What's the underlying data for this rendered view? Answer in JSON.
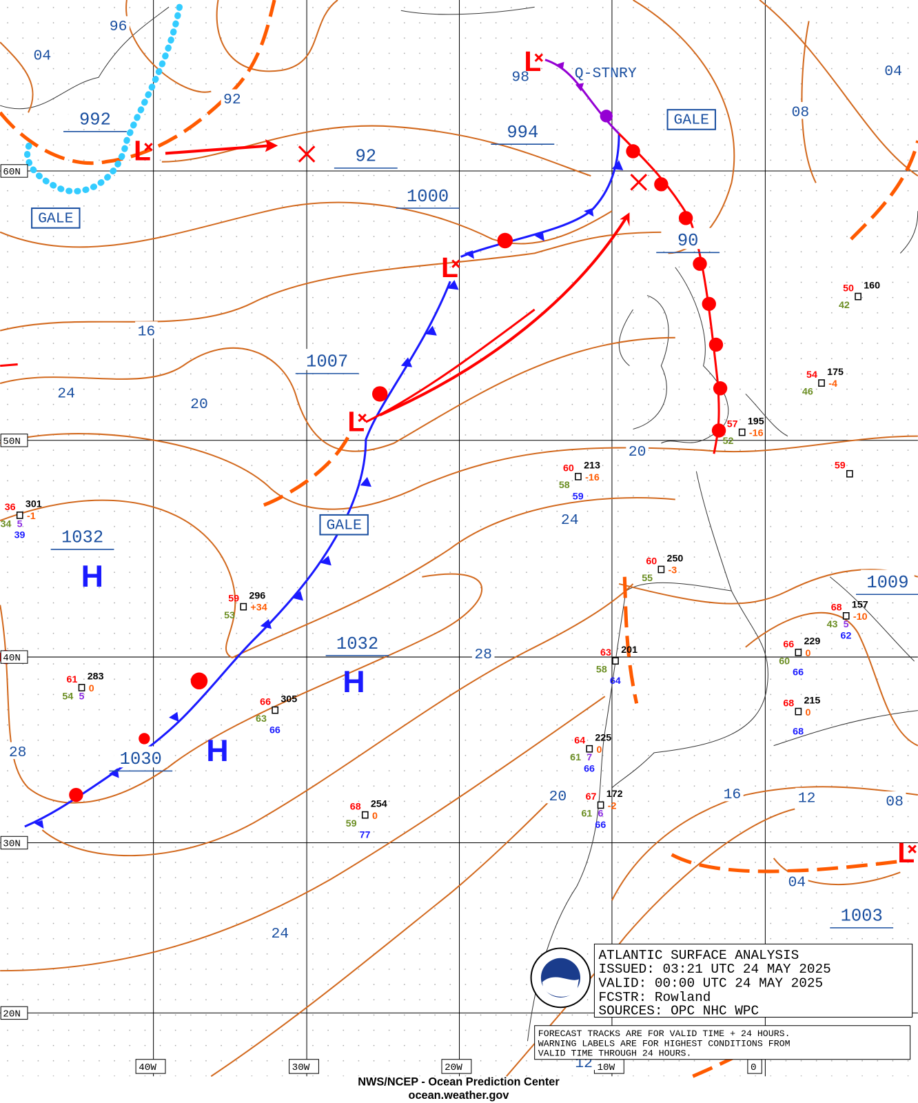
{
  "lat_labels": [
    "60N",
    "50N",
    "40N",
    "30N",
    "20N"
  ],
  "lon_labels": [
    "40W",
    "30W",
    "20W",
    "10W",
    "0"
  ],
  "isobar_labels": [
    "96",
    "04",
    "92",
    "04",
    "08",
    "16",
    "24",
    "20",
    "20",
    "24",
    "28",
    "28",
    "20",
    "16",
    "12",
    "08",
    "04",
    "24",
    "12",
    "98"
  ],
  "center_labels": [
    "992",
    "92",
    "994",
    "1000",
    "1007",
    "90",
    "1032",
    "1032",
    "1030",
    "1009",
    "1003"
  ],
  "highs": [
    "H",
    "H",
    "H"
  ],
  "lows": [
    "L",
    "L",
    "L",
    "L",
    "L"
  ],
  "warnings": [
    "GALE",
    "GALE",
    "GALE"
  ],
  "front_labels": [
    "Q-STNRY"
  ],
  "stations": [
    {
      "temp": "36",
      "pressure": "301",
      "tendency": "-1",
      "dew": "34",
      "vis": "5",
      "wave": "39"
    },
    {
      "temp": "60",
      "pressure": "213",
      "tendency": "-16",
      "dew": "58",
      "wave": "59"
    },
    {
      "temp": "50",
      "pressure": "160",
      "dew": "42"
    },
    {
      "temp": "54",
      "pressure": "175",
      "tendency": "-4",
      "dew": "46"
    },
    {
      "temp": "57",
      "pressure": "195",
      "tendency": "-16",
      "dew": "52"
    },
    {
      "temp": "59"
    },
    {
      "temp": "59",
      "pressure": "296",
      "tendency": "+34",
      "dew": "53"
    },
    {
      "temp": "61",
      "pressure": "283",
      "tendency": "0",
      "dew": "54",
      "vis": "5"
    },
    {
      "temp": "66",
      "pressure": "305",
      "dew": "63",
      "wave": "66"
    },
    {
      "temp": "60",
      "pressure": "250",
      "tendency": "-3",
      "dew": "55"
    },
    {
      "temp": "63",
      "pressure": "201",
      "dew": "58",
      "wave": "64"
    },
    {
      "temp": "64",
      "pressure": "225",
      "tendency": "0",
      "dew": "61",
      "vis": "7",
      "wave": "66"
    },
    {
      "temp": "67",
      "pressure": "172",
      "tendency": "-2",
      "dew": "61",
      "vis": "6",
      "wave": "66"
    },
    {
      "temp": "68",
      "pressure": "254",
      "tendency": "0",
      "dew": "59",
      "wave": "77"
    },
    {
      "temp": "66",
      "pressure": "229",
      "tendency": "0",
      "dew": "60",
      "wave": "66"
    },
    {
      "temp": "68",
      "pressure": "215",
      "tendency": "0",
      "wave": "68"
    },
    {
      "temp": "68",
      "pressure": "157",
      "tendency": "-10",
      "dew": "43",
      "vis": "5",
      "wave": "62"
    }
  ],
  "title_box": {
    "lines": [
      "ATLANTIC SURFACE ANALYSIS",
      "ISSUED:  03:21 UTC 24 MAY 2025",
      "VALID:   00:00 UTC 24 MAY 2025",
      "FCSTR:   Rowland",
      "SOURCES:  OPC NHC WPC"
    ]
  },
  "note": {
    "lines": [
      "FORECAST TRACKS ARE FOR VALID TIME + 24 HOURS.",
      "WARNING LABELS ARE FOR HIGHEST CONDITIONS FROM",
      "VALID TIME THROUGH 24 HOURS."
    ]
  },
  "footer": {
    "line1": "NWS/NCEP - Ocean Prediction Center",
    "line2": "ocean.weather.gov"
  }
}
